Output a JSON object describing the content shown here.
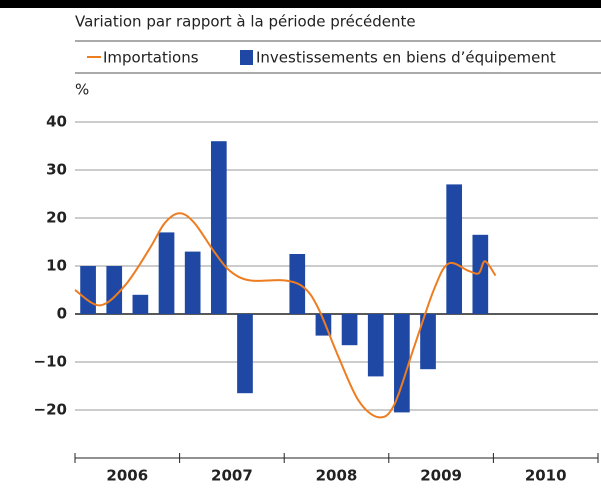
{
  "chart_data": {
    "type": "bar-line",
    "subtitle": "Variation par rapport à la période précédente",
    "y_unit": "%",
    "categories": [
      "2006",
      "2007",
      "2008",
      "2009",
      "2010"
    ],
    "xlim": [
      2006,
      2011
    ],
    "ylim": [
      -30,
      45
    ],
    "yticks": [
      {
        "value": -20,
        "label": "−20"
      },
      {
        "value": -10,
        "label": "−10"
      },
      0,
      10,
      20,
      30,
      40
    ],
    "grid": true,
    "series": [
      {
        "name": "Importations",
        "type": "line",
        "color": "#ee7d22",
        "x": [
          2006.0,
          2006.24,
          2006.48,
          2006.71,
          2006.86,
          2007.0,
          2007.14,
          2007.33,
          2007.48,
          2007.67,
          2008.0,
          2008.19,
          2008.33,
          2008.52,
          2008.71,
          2008.9,
          2009.05,
          2009.24,
          2009.43,
          2009.57,
          2009.76,
          2009.86,
          2009.92,
          2010.02
        ],
        "values": [
          5,
          1.8,
          6,
          13.5,
          19,
          21,
          19,
          13,
          9,
          7,
          7,
          5.5,
          1,
          -9,
          -18,
          -21.5,
          -19,
          -7,
          5,
          10.5,
          9,
          8.5,
          11,
          8
        ]
      },
      {
        "name": "Investissements en biens d’équipement",
        "type": "bar",
        "color": "#1f48a4",
        "x": [
          2006.125,
          2006.375,
          2006.625,
          2006.875,
          2007.125,
          2007.375,
          2007.625,
          2007.875,
          2008.125,
          2008.375,
          2008.625,
          2008.875,
          2009.125,
          2009.375,
          2009.625,
          2009.875
        ],
        "values": [
          10,
          10,
          4,
          17,
          13,
          36,
          -16.5,
          0,
          12.5,
          -4.5,
          -6.5,
          -13,
          -20.5,
          -11.5,
          27,
          16.5
        ]
      }
    ]
  }
}
